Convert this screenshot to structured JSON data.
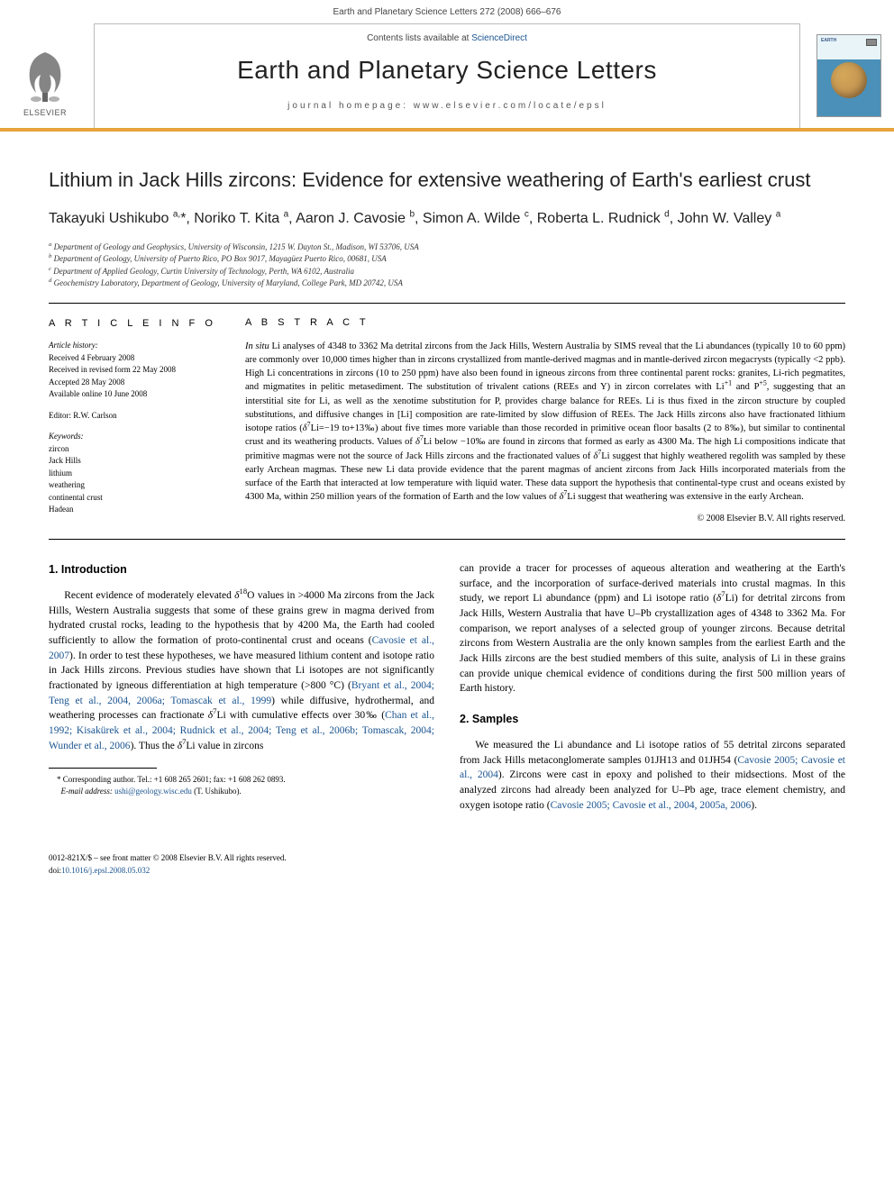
{
  "page_header": "Earth and Planetary Science Letters 272 (2008) 666–676",
  "banner": {
    "publisher_label": "ELSEVIER",
    "contents_prefix": "Contents lists available at ",
    "contents_link": "ScienceDirect",
    "journal_name": "Earth and Planetary Science Letters",
    "homepage_prefix": "journal homepage: ",
    "homepage_url": "www.elsevier.com/locate/epsl",
    "cover_title": "EARTH"
  },
  "article": {
    "title": "Lithium in Jack Hills zircons: Evidence for extensive weathering of Earth's earliest crust",
    "authors_html": "Takayuki Ushikubo <sup>a,</sup>*, Noriko T. Kita <sup>a</sup>, Aaron J. Cavosie <sup>b</sup>, Simon A. Wilde <sup>c</sup>, Roberta L. Rudnick <sup>d</sup>, John W. Valley <sup>a</sup>",
    "affiliations": [
      "a Department of Geology and Geophysics, University of Wisconsin, 1215 W. Dayton St., Madison, WI 53706, USA",
      "b Department of Geology, University of Puerto Rico, PO Box 9017, Mayagüez Puerto Rico, 00681, USA",
      "c Department of Applied Geology, Curtin University of Technology, Perth, WA 6102, Australia",
      "d Geochemistry Laboratory, Department of Geology, University of Maryland, College Park, MD 20742, USA"
    ]
  },
  "info": {
    "heading": "A R T I C L E   I N F O",
    "history_label": "Article history:",
    "history": [
      "Received 4 February 2008",
      "Received in revised form 22 May 2008",
      "Accepted 28 May 2008",
      "Available online 10 June 2008"
    ],
    "editor": "Editor: R.W. Carlson",
    "keywords_label": "Keywords:",
    "keywords": [
      "zircon",
      "Jack Hills",
      "lithium",
      "weathering",
      "continental crust",
      "Hadean"
    ]
  },
  "abstract": {
    "heading": "A B S T R A C T",
    "text": "In situ Li analyses of 4348 to 3362 Ma detrital zircons from the Jack Hills, Western Australia by SIMS reveal that the Li abundances (typically 10 to 60 ppm) are commonly over 10,000 times higher than in zircons crystallized from mantle-derived magmas and in mantle-derived zircon megacrysts (typically <2 ppb). High Li concentrations in zircons (10 to 250 ppm) have also been found in igneous zircons from three continental parent rocks: granites, Li-rich pegmatites, and migmatites in pelitic metasediment. The substitution of trivalent cations (REEs and Y) in zircon correlates with Li+1 and P+5, suggesting that an interstitial site for Li, as well as the xenotime substitution for P, provides charge balance for REEs. Li is thus fixed in the zircon structure by coupled substitutions, and diffusive changes in [Li] composition are rate-limited by slow diffusion of REEs. The Jack Hills zircons also have fractionated lithium isotope ratios (δ7Li=−19 to+13‰) about five times more variable than those recorded in primitive ocean floor basalts (2 to 8‰), but similar to continental crust and its weathering products. Values of δ7Li below −10‰ are found in zircons that formed as early as 4300 Ma. The high Li compositions indicate that primitive magmas were not the source of Jack Hills zircons and the fractionated values of δ7Li suggest that highly weathered regolith was sampled by these early Archean magmas. These new Li data provide evidence that the parent magmas of ancient zircons from Jack Hills incorporated materials from the surface of the Earth that interacted at low temperature with liquid water. These data support the hypothesis that continental-type crust and oceans existed by 4300 Ma, within 250 million years of the formation of Earth and the low values of δ7Li suggest that weathering was extensive in the early Archean.",
    "copyright": "© 2008 Elsevier B.V. All rights reserved."
  },
  "sections": {
    "intro_heading": "1. Introduction",
    "intro_para1_pre": "Recent evidence of moderately elevated δ18O values in >4000 Ma zircons from the Jack Hills, Western Australia suggests that some of these grains grew in magma derived from hydrated crustal rocks, leading to the hypothesis that by 4200 Ma, the Earth had cooled sufficiently to allow the formation of proto-continental crust and oceans (",
    "intro_cite1": "Cavosie et al., 2007",
    "intro_para1_mid1": "). In order to test these hypotheses, we have measured lithium content and isotope ratio in Jack Hills zircons. Previous studies have shown that Li isotopes are not significantly fractionated by igneous differentiation at high temperature (>800 °C) (",
    "intro_cite2": "Bryant et al., 2004; Teng et al., 2004, 2006a; Tomascak et al., 1999",
    "intro_para1_mid2": ") while diffusive, hydrothermal, and weathering processes can fractionate δ7Li with cumulative effects over 30‰ (",
    "intro_cite3": "Chan et al., 1992; Kisakürek et al., 2004; Rudnick et al., 2004; Teng et al., 2006b; Tomascak, 2004; Wunder et al., 2006",
    "intro_para1_post": "). Thus the δ7Li value in zircons",
    "intro_para1_col2": "can provide a tracer for processes of aqueous alteration and weathering at the Earth's surface, and the incorporation of surface-derived materials into crustal magmas. In this study, we report Li abundance (ppm) and Li isotope ratio (δ7Li) for detrital zircons from Jack Hills, Western Australia that have U–Pb crystallization ages of 4348 to 3362 Ma. For comparison, we report analyses of a selected group of younger zircons. Because detrital zircons from Western Australia are the only known samples from the earliest Earth and the Jack Hills zircons are the best studied members of this suite, analysis of Li in these grains can provide unique chemical evidence of conditions during the first 500 million years of Earth history.",
    "samples_heading": "2. Samples",
    "samples_para_pre": "We measured the Li abundance and Li isotope ratios of 55 detrital zircons separated from Jack Hills metaconglomerate samples 01JH13 and 01JH54 (",
    "samples_cite1": "Cavosie 2005; Cavosie et al., 2004",
    "samples_para_mid": "). Zircons were cast in epoxy and polished to their midsections. Most of the analyzed zircons had already been analyzed for U–Pb age, trace element chemistry, and oxygen isotope ratio (",
    "samples_cite2": "Cavosie 2005; Cavosie et al., 2004, 2005a, 2006",
    "samples_para_post": ")."
  },
  "footnote": {
    "corr": "* Corresponding author. Tel.: +1 608 265 2601; fax: +1 608 262 0893.",
    "email_label": "E-mail address: ",
    "email": "ushi@geology.wisc.edu",
    "email_suffix": " (T. Ushikubo)."
  },
  "footer": {
    "line1": "0012-821X/$ – see front matter © 2008 Elsevier B.V. All rights reserved.",
    "doi_prefix": "doi:",
    "doi": "10.1016/j.epsl.2008.05.032"
  },
  "colors": {
    "accent_orange": "#e8a33d",
    "link_blue": "#1a5490",
    "text_body": "#000000",
    "text_muted": "#444444"
  }
}
